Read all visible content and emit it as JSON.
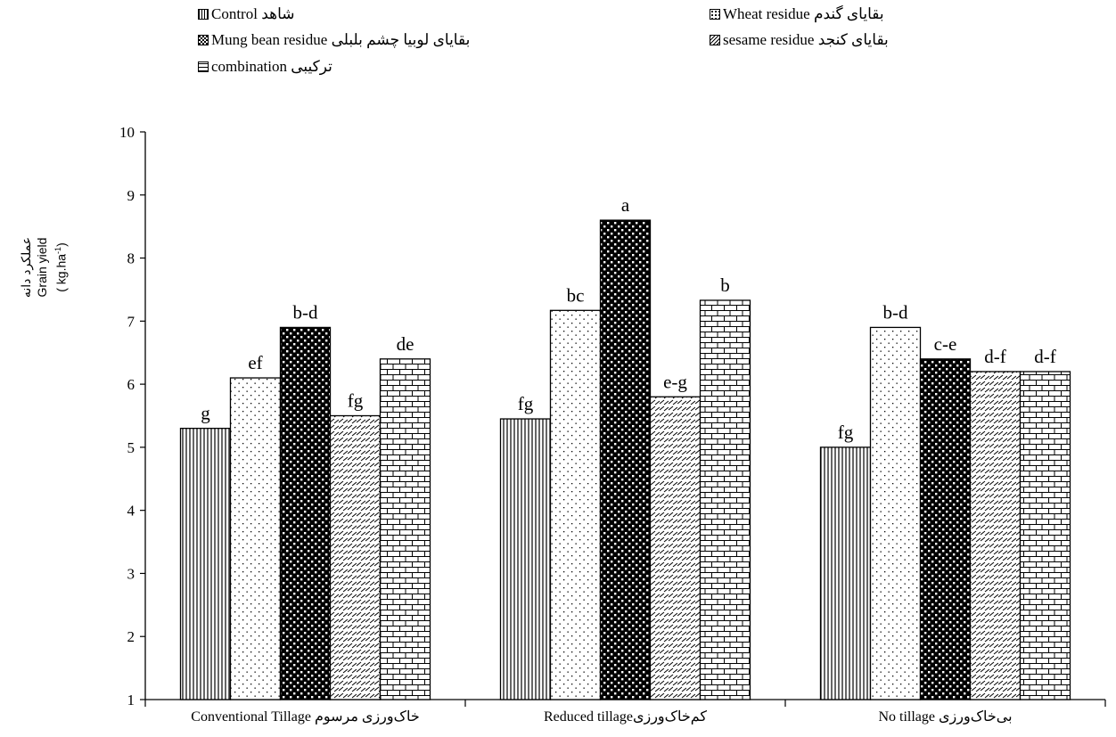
{
  "legend": [
    {
      "label": "شاهد Control",
      "pattern": "vlines"
    },
    {
      "label": "بقایای گندم  Wheat residue",
      "pattern": "dots"
    },
    {
      "label": "بقایای لوبیا چشم بلبلی Mung bean residue",
      "pattern": "checker"
    },
    {
      "label": "بقایای کنجد  sesame residue",
      "pattern": "diag"
    },
    {
      "label": "ترکیبی combination",
      "pattern": "brick"
    }
  ],
  "y_title": {
    "line1": "عملکرد دانه",
    "line2": "Grain yield",
    "line3": "( kg.ha",
    "line3_sup": "-1",
    "line3_end": ")"
  },
  "chart_data": {
    "type": "bar",
    "categories": [
      "Conventional Tillage خاک‌ورزی مرسوم",
      "Reduced tillageکم‌خاک‌ورزی",
      "No tillage بی‌خاک‌ورزی"
    ],
    "ylim": [
      1,
      10
    ],
    "yticks": [
      1,
      2,
      3,
      4,
      5,
      6,
      7,
      8,
      9,
      10
    ],
    "grid": false,
    "legend_position": "top",
    "series": [
      {
        "name": "شاهد Control",
        "values": [
          5.3,
          5.45,
          5.0
        ],
        "labels": [
          "g",
          "fg",
          "fg"
        ]
      },
      {
        "name": "بقایای گندم  Wheat residue",
        "values": [
          6.1,
          7.17,
          6.9
        ],
        "labels": [
          "ef",
          "bc",
          "b-d"
        ]
      },
      {
        "name": "بقایای لوبیا چشم بلبلی Mung bean residue",
        "values": [
          6.9,
          8.6,
          6.4
        ],
        "labels": [
          "b-d",
          "a",
          "c-e"
        ]
      },
      {
        "name": "بقایای کنجد  sesame residue",
        "values": [
          5.5,
          5.8,
          6.2
        ],
        "labels": [
          "fg",
          "e-g",
          "d-f"
        ]
      },
      {
        "name": "ترکیبی combination",
        "values": [
          6.4,
          7.33,
          6.2
        ],
        "labels": [
          "de",
          "b",
          "d-f"
        ]
      }
    ]
  }
}
